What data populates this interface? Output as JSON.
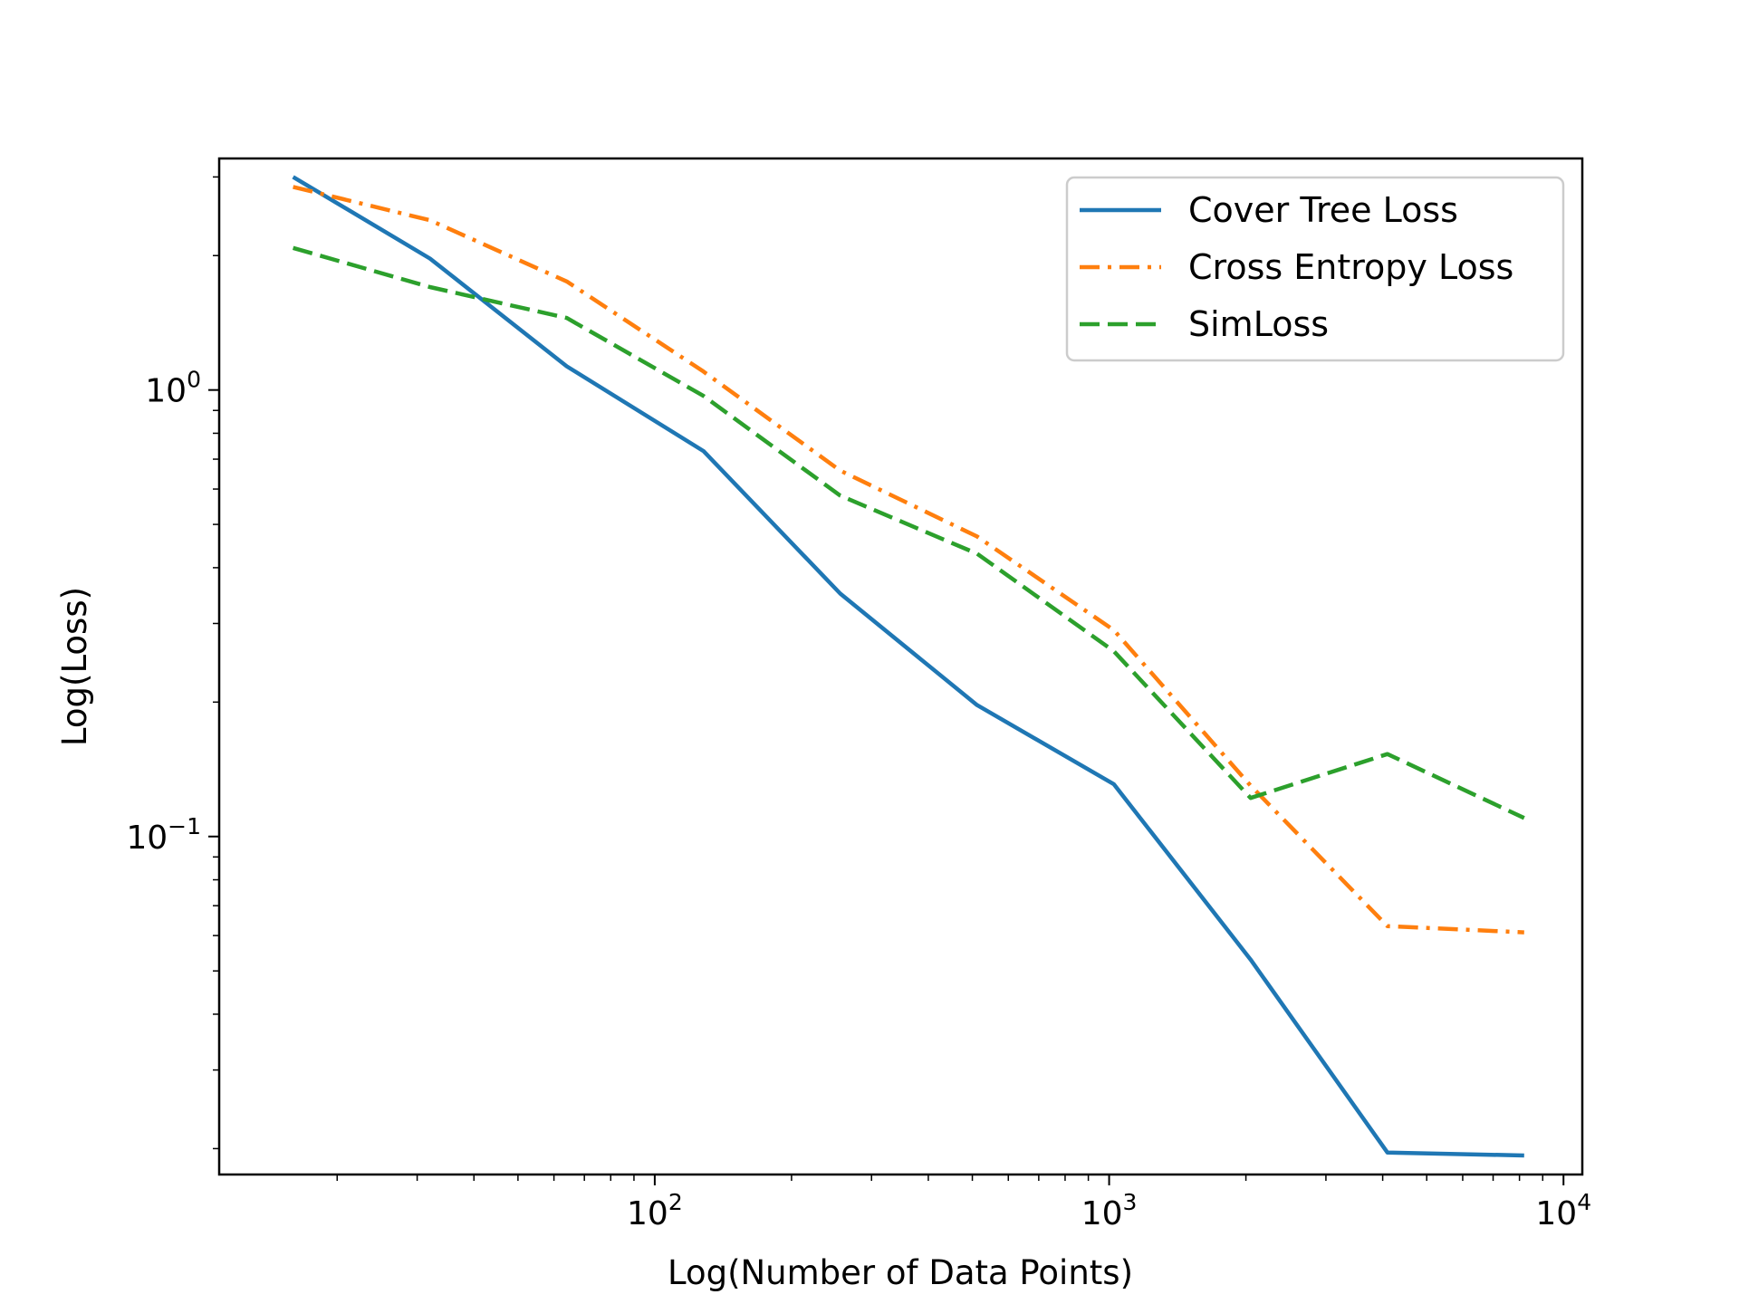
{
  "chart_data": {
    "type": "line",
    "xscale": "log",
    "yscale": "log",
    "xlabel": "Log(Number of Data Points)",
    "ylabel": "Log(Loss)",
    "xlim": [
      11,
      11000
    ],
    "ylim": [
      0.0175,
      3.3
    ],
    "x_ticks": [
      {
        "value": 100,
        "base": "10",
        "exp": "2"
      },
      {
        "value": 1000,
        "base": "10",
        "exp": "3"
      },
      {
        "value": 10000,
        "base": "10",
        "exp": "4"
      }
    ],
    "y_ticks": [
      {
        "value": 1,
        "base": "10",
        "exp": "0"
      },
      {
        "value": 0.1,
        "base": "10",
        "exp": "−1"
      }
    ],
    "x": [
      16,
      32,
      64,
      128,
      256,
      512,
      1024,
      2048,
      4096,
      8192
    ],
    "series": [
      {
        "name": "Cover Tree Loss",
        "color": "#1f77b4",
        "style": "solid",
        "values": [
          3.0,
          1.97,
          1.13,
          0.73,
          0.35,
          0.197,
          0.131,
          0.053,
          0.0196,
          0.0193
        ]
      },
      {
        "name": "Cross Entropy Loss",
        "color": "#ff7f0e",
        "style": "dashdot",
        "values": [
          2.85,
          2.4,
          1.75,
          1.1,
          0.66,
          0.47,
          0.29,
          0.13,
          0.063,
          0.061
        ]
      },
      {
        "name": "SimLoss",
        "color": "#2ca02c",
        "style": "dashed",
        "values": [
          2.08,
          1.7,
          1.45,
          0.97,
          0.58,
          0.43,
          0.26,
          0.122,
          0.153,
          0.11
        ]
      }
    ],
    "legend_position": "top-right",
    "grid": false
  }
}
